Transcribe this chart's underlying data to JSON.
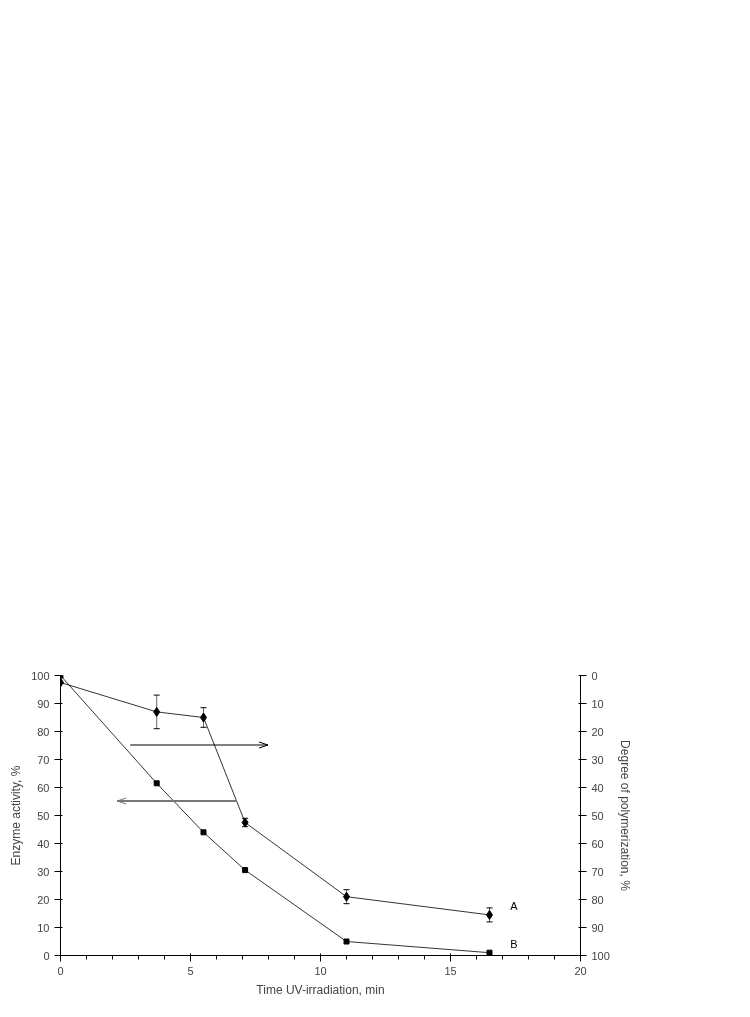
{
  "chart_data": {
    "type": "line",
    "xlabel": "Time UV-irradiation, min",
    "ylabel": "Enzyme activity, %",
    "y2label": "Degree of polymerization, %",
    "xlim": [
      0,
      20
    ],
    "xticks": [
      0,
      5,
      10,
      15,
      20
    ],
    "ylim": [
      0,
      100
    ],
    "yticks": [
      0,
      10,
      20,
      30,
      40,
      50,
      60,
      70,
      80,
      90,
      100
    ],
    "y2lim": [
      100,
      0
    ],
    "y2ticks": [
      0,
      10,
      20,
      30,
      40,
      50,
      60,
      70,
      80,
      90,
      100
    ],
    "grid": false,
    "line_style": "solid",
    "series": [
      {
        "name": "A",
        "color": "#000000",
        "axis": "y2",
        "marker": "diamond",
        "x": [
          0,
          3.7,
          5.5,
          7.1,
          11,
          16.5
        ],
        "values": [
          2.5,
          13,
          15,
          52.5,
          79,
          85.5
        ],
        "errors": [
          null,
          6,
          3.5,
          1.5,
          2.5,
          2.5
        ]
      },
      {
        "name": "B",
        "color": "#000000",
        "axis": "y",
        "marker": "square",
        "x": [
          0,
          3.7,
          5.5,
          7.1,
          11,
          16.5
        ],
        "values": [
          100,
          61.5,
          44,
          30.5,
          5,
          1
        ]
      }
    ]
  }
}
